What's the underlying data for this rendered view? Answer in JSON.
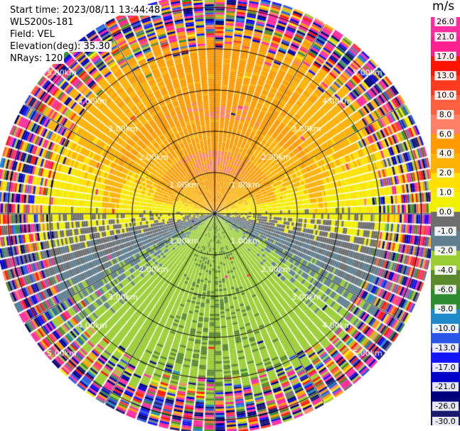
{
  "chart_data": {
    "type": "ppi",
    "info": {
      "start_time": "Start time: 2023/08/11 13:44:48",
      "instrument": "WLS200s-181",
      "field": "Field: VEL",
      "elevation": "Elevation(deg): 35.30",
      "nrays": "NRays: 120"
    },
    "range_rings_km": [
      1,
      2,
      3,
      4,
      5
    ],
    "range_labels": [
      "1.00km",
      "2.00km",
      "3.00km",
      "4.00km",
      "5.00km"
    ],
    "max_range_km": 5.3,
    "colorbar": {
      "unit": "m/s",
      "bounds": [
        -30.0,
        -26.0,
        -21.0,
        -17.0,
        -13.0,
        -10.0,
        -8.0,
        -6.0,
        -4.0,
        -2.0,
        -1.0,
        0.0,
        1.0,
        2.0,
        4.0,
        6.0,
        8.0,
        10.0,
        13.0,
        17.0,
        21.0,
        26.0
      ],
      "tick_labels": [
        "-30.0",
        "-26.0",
        "-21.0",
        "-17.0",
        "-13.0",
        "-10.0",
        "-8.0",
        "-6.0",
        "-4.0",
        "-2.0",
        "-1.0",
        "0.0",
        "1.0",
        "2.0",
        "4.0",
        "6.0",
        "8.0",
        "10.0",
        "13.0",
        "17.0",
        "21.0",
        "26.0"
      ],
      "colors": [
        "#1a1a6e",
        "#00007a",
        "#0000c8",
        "#1414ff",
        "#2b55e6",
        "#1e8ac8",
        "#2f8b2f",
        "#5a8a2b",
        "#9acd32",
        "#5f7f8f",
        "#6e6e6e",
        "#f0f000",
        "#ffe000",
        "#ffb000",
        "#ff9a00",
        "#ff8066",
        "#ff6040",
        "#ff3a1e",
        "#ff1400",
        "#ff2090",
        "#ff2da0"
      ]
    },
    "field_description": {
      "near_range": "approaching (green/olive, negative) to the south, receding (yellow/orange, positive) to the north, near-zero (gray) along the east-west axis",
      "far_range": "noisy speckle of all colors beyond about 4.5 km"
    }
  }
}
